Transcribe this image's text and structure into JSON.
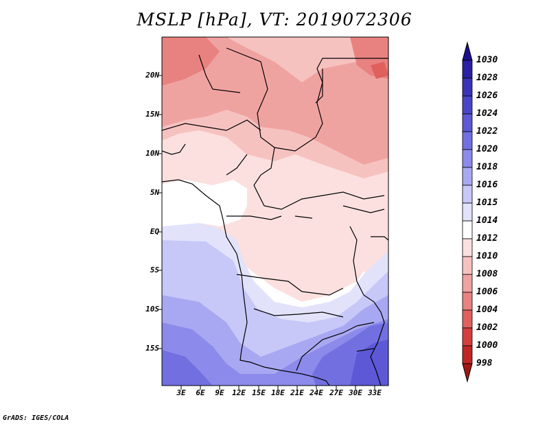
{
  "title": "MSLP [hPa], VT: 2019072306",
  "footer": "GrADS: IGES/COLA",
  "axes": {
    "lat_labels": [
      "20N",
      "15N",
      "10N",
      "5N",
      "EQ",
      "5S",
      "10S",
      "15S"
    ],
    "lon_labels": [
      "3E",
      "6E",
      "9E",
      "12E",
      "15E",
      "18E",
      "21E",
      "24E",
      "27E",
      "30E",
      "33E"
    ]
  },
  "colorbar": {
    "labels": [
      "1030",
      "1028",
      "1026",
      "1024",
      "1022",
      "1020",
      "1018",
      "1016",
      "1015",
      "1014",
      "1012",
      "1010",
      "1008",
      "1006",
      "1004",
      "1002",
      "1000",
      "998"
    ],
    "colors": [
      "#1d108c",
      "#2b1fa6",
      "#3a33b8",
      "#4a45c8",
      "#5c58d6",
      "#7270e0",
      "#8c8aea",
      "#a8a8f2",
      "#c7c8f8",
      "#e2e3fb",
      "#ffffff",
      "#fbe0df",
      "#f6c2c0",
      "#efa3a1",
      "#e88280",
      "#e0605e",
      "#d43f3d",
      "#bf2624",
      "#a01816"
    ]
  },
  "colors": {
    "frame": "#000000",
    "border": "#000000"
  }
}
